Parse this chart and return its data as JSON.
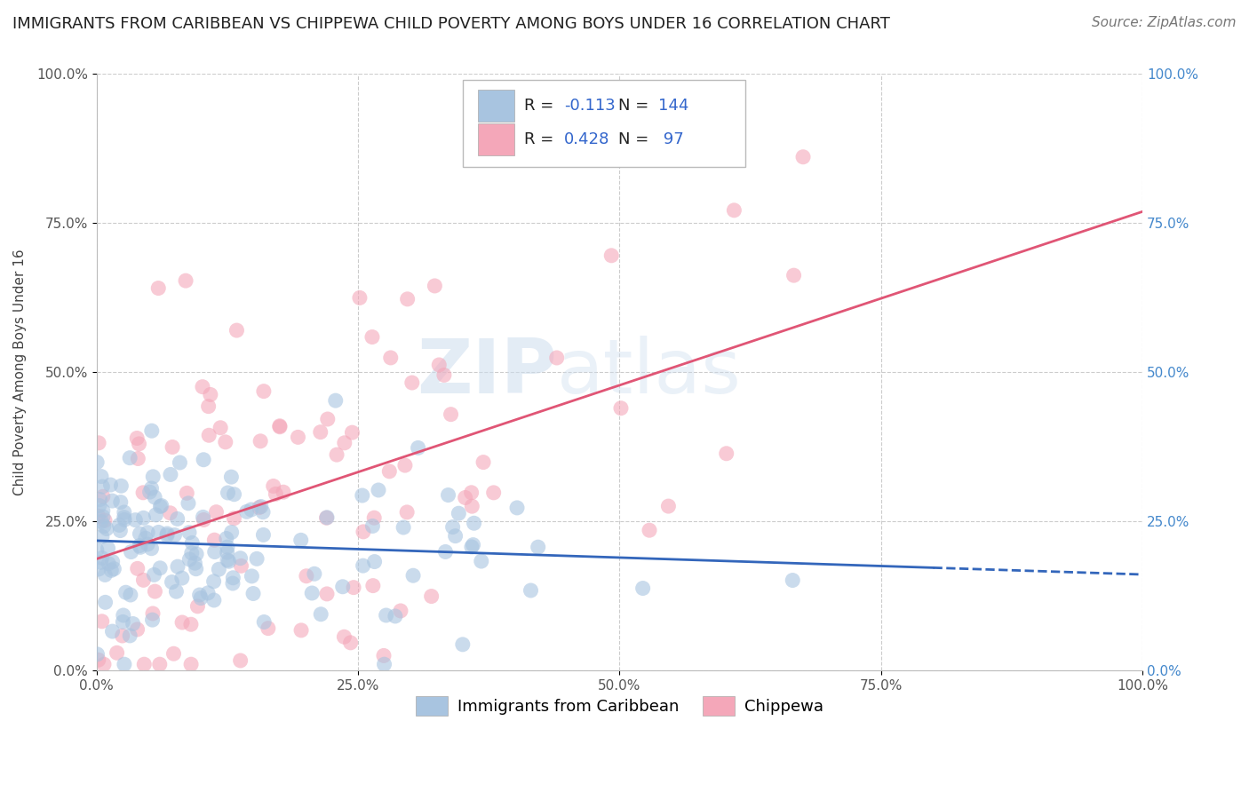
{
  "title": "IMMIGRANTS FROM CARIBBEAN VS CHIPPEWA CHILD POVERTY AMONG BOYS UNDER 16 CORRELATION CHART",
  "source": "Source: ZipAtlas.com",
  "ylabel": "Child Poverty Among Boys Under 16",
  "legend_labels": [
    "Immigrants from Caribbean",
    "Chippewa"
  ],
  "blue_R": -0.113,
  "blue_N": 144,
  "pink_R": 0.428,
  "pink_N": 97,
  "xlim": [
    0,
    1
  ],
  "ylim": [
    0,
    1
  ],
  "xticks": [
    0,
    0.25,
    0.5,
    0.75,
    1.0
  ],
  "yticks": [
    0,
    0.25,
    0.5,
    0.75,
    1.0
  ],
  "xticklabels": [
    "0.0%",
    "25.0%",
    "50.0%",
    "75.0%",
    "100.0%"
  ],
  "yticklabels": [
    "0.0%",
    "25.0%",
    "50.0%",
    "75.0%",
    "100.0%"
  ],
  "blue_color": "#a8c4e0",
  "pink_color": "#f4a7b9",
  "blue_line_color": "#3366bb",
  "pink_line_color": "#e05575",
  "watermark_zip": "ZIP",
  "watermark_atlas": "atlas",
  "background": "#ffffff",
  "grid_color": "#cccccc",
  "title_fontsize": 13,
  "axis_label_fontsize": 11,
  "tick_fontsize": 11,
  "legend_fontsize": 13,
  "source_fontsize": 11,
  "right_tick_color": "#4488cc",
  "corr_box_blue_text_color": "#3366cc",
  "corr_box_label_color": "#222222"
}
